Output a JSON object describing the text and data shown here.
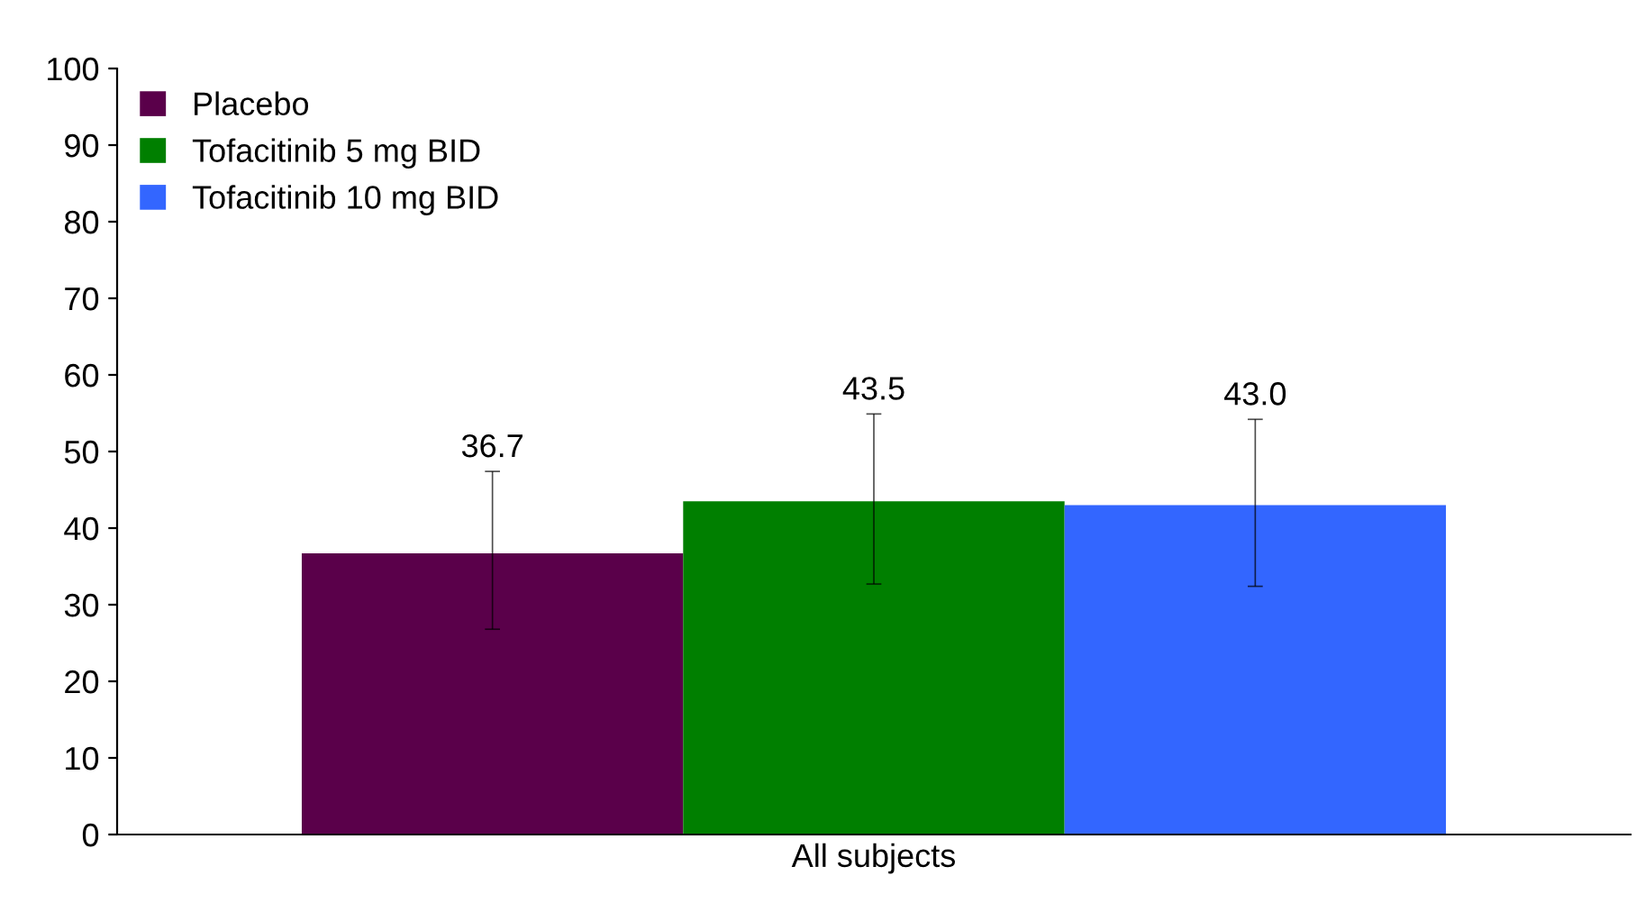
{
  "chart_data": {
    "type": "bar",
    "categories": [
      "All subjects"
    ],
    "series": [
      {
        "name": "Placebo",
        "color": "#5a004a",
        "values": [
          36.7
        ],
        "errors": [
          [
            26.8,
            47.4
          ]
        ],
        "value_labels": [
          "36.7"
        ]
      },
      {
        "name": "Tofacitinib 5 mg BID",
        "color": "#007f00",
        "values": [
          43.5
        ],
        "errors": [
          [
            32.7,
            54.9
          ]
        ],
        "value_labels": [
          "43.5"
        ]
      },
      {
        "name": "Tofacitinib 10 mg BID",
        "color": "#3366ff",
        "values": [
          43.0
        ],
        "errors": [
          [
            32.4,
            54.2
          ]
        ],
        "value_labels": [
          "43.0"
        ]
      }
    ],
    "ylim": [
      0,
      100
    ],
    "yticks": [
      0,
      10,
      20,
      30,
      40,
      50,
      60,
      70,
      80,
      90,
      100
    ],
    "grid": false,
    "legend": "top left"
  }
}
